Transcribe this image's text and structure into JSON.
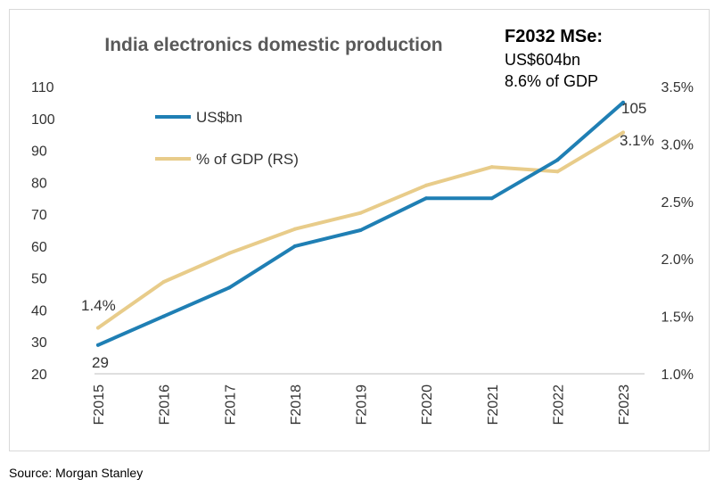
{
  "chart_data": {
    "type": "line",
    "title": "India electronics domestic production",
    "annotation": {
      "heading": "F2032 MSe:",
      "line1": "US$604bn",
      "line2": "8.6% of GDP"
    },
    "categories": [
      "F2015",
      "F2016",
      "F2017",
      "F2018",
      "F2019",
      "F2020",
      "F2021",
      "F2022",
      "F2023"
    ],
    "series": [
      {
        "name": "US$bn",
        "axis": "left",
        "color": "#1f7fb4",
        "values": [
          29,
          38,
          47,
          60,
          65,
          75,
          75,
          87,
          105
        ]
      },
      {
        "name": "% of GDP (RS)",
        "axis": "right",
        "color": "#e8cc8a",
        "values": [
          1.4,
          1.8,
          2.05,
          2.26,
          2.4,
          2.64,
          2.8,
          2.76,
          3.1
        ]
      }
    ],
    "y_left": {
      "min": 20,
      "max": 110,
      "ticks": [
        20,
        30,
        40,
        50,
        60,
        70,
        80,
        90,
        100,
        110
      ]
    },
    "y_right": {
      "min": 1.0,
      "max": 3.5,
      "ticks": [
        "1.0%",
        "1.5%",
        "2.0%",
        "2.5%",
        "3.0%",
        "3.5%"
      ]
    },
    "data_labels": {
      "usd_first": "29",
      "usd_last": "105",
      "gdp_first": "1.4%",
      "gdp_last": "3.1%"
    },
    "legend_position": "top-left"
  },
  "source": "Source: Morgan Stanley"
}
